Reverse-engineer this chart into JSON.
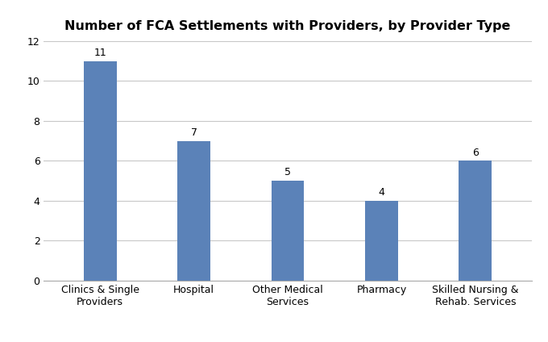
{
  "title": "Number of FCA Settlements with Providers, by Provider Type",
  "categories": [
    "Clinics & Single\nProviders",
    "Hospital",
    "Other Medical\nServices",
    "Pharmacy",
    "Skilled Nursing &\nRehab. Services"
  ],
  "values": [
    11,
    7,
    5,
    4,
    6
  ],
  "bar_color": "#5b82b8",
  "ylim": [
    0,
    12
  ],
  "yticks": [
    0,
    2,
    4,
    6,
    8,
    10,
    12
  ],
  "title_fontsize": 11.5,
  "tick_fontsize": 9,
  "label_fontsize": 9,
  "background_color": "#ffffff",
  "grid_color": "#c8c8c8"
}
